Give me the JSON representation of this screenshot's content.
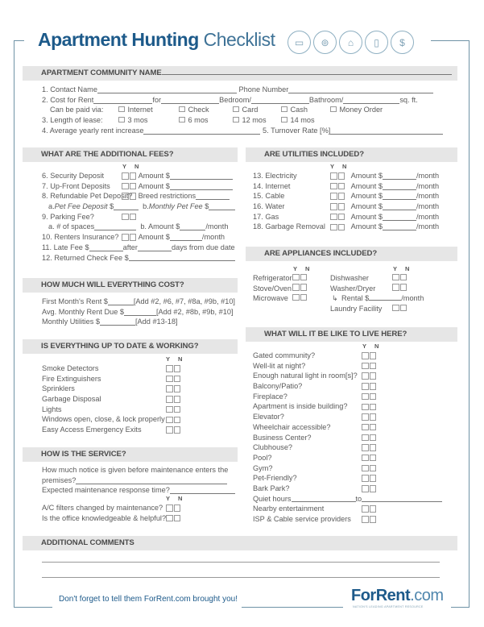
{
  "title": {
    "bold": "Apartment Hunting",
    "light": "Checklist"
  },
  "header_icons": [
    "hotdog-bed-icon",
    "location-pin-icon",
    "hanger-icon",
    "lightbulb-icon",
    "dollar-icon"
  ],
  "colors": {
    "brand_blue": "#1d5a8a",
    "frame": "#6f93a6",
    "section_bar": "#e6e6e6"
  },
  "yn": "Y N",
  "community": {
    "header": "APARTMENT COMMUNITY NAME",
    "contact": "1. Contact Name",
    "phone": "Phone Number",
    "cost": "2. Cost for Rent",
    "for": "for",
    "bedroom": "Bedroom/",
    "bathroom": "Bathroom/",
    "sqft": "sq. ft.",
    "paid_via": "Can be paid via:",
    "pay_options": [
      "Internet",
      "Check",
      "Card",
      "Cash",
      "Money Order"
    ],
    "lease": "3. Length of lease:",
    "lease_options": [
      "3 mos",
      "6 mos",
      "12 mos",
      "14 mos"
    ],
    "increase": "4. Average yearly rent increase",
    "turnover": "5. Turnover Rate [%]"
  },
  "fees": {
    "header": "WHAT ARE THE ADDITIONAL FEES?",
    "security": "6. Security Deposit",
    "upfront": "7. Up-Front Deposits",
    "pet": "8. Refundable Pet Deposit?",
    "amount": "Amount $",
    "breed": "Breed restrictions",
    "pet_a_pre": "a. ",
    "pet_a": "Pet Fee Deposit",
    "dollar": "$",
    "pet_b_pre": "b. ",
    "pet_b": "Monthly Pet Fee",
    "parking": "9. Parking Fee?",
    "spaces": "a. # of spaces",
    "amount_b": "b. Amount $",
    "month": "/month",
    "insurance": "10. Renters Insurance?",
    "late": "11. Late Fee $",
    "after": "after",
    "days": "days from due date",
    "returned": "12. Returned Check Fee $"
  },
  "cost": {
    "header": "HOW MUCH WILL EVERYTHING COST?",
    "rows": [
      {
        "label": "First Month's Rent $",
        "note": "[Add #2, #6, #7, #8a, #9b, #10]"
      },
      {
        "label": "Avg. Monthly Rent Due $",
        "note": "[Add #2, #8b, #9b, #10]"
      },
      {
        "label": "Monthly Utilities $",
        "note": "[Add #13-18]"
      }
    ]
  },
  "utilities": {
    "header": "ARE UTILITIES INCLUDED?",
    "amount": "Amount $",
    "month": "/month",
    "items": [
      "13. Electricity",
      "14. Internet",
      "15. Cable",
      "16. Water",
      "17. Gas",
      "18. Garbage Removal"
    ]
  },
  "appliances": {
    "header": "ARE APPLIANCES INCLUDED?",
    "left": [
      "Refrigerator",
      "Stove/Oven",
      "Microwave"
    ],
    "right": [
      "Dishwasher",
      "Washer/Dryer"
    ],
    "rental": "Rental $",
    "month": "/month",
    "laundry": "Laundry Facility"
  },
  "working": {
    "header": "IS EVERYTHING UP TO DATE & WORKING?",
    "items": [
      "Smoke Detectors",
      "Fire Extinguishers",
      "Sprinklers",
      "Garbage Disposal",
      "Lights",
      "Windows open, close, & lock properly",
      "Easy Access Emergency Exits"
    ]
  },
  "service": {
    "header": "HOW IS THE SERVICE?",
    "notice1": "How much notice is given before maintenance enters the",
    "notice2": "premises?",
    "response": "Expected maintenance response time?",
    "items": [
      "A/C filters changed by maintenance?",
      "Is the office knowledgeable & helpful?"
    ]
  },
  "live": {
    "header": "WHAT WILL IT BE LIKE TO LIVE HERE?",
    "items": [
      "Gated community?",
      "Well-lit at night?",
      "Enough natural light in room[s]?",
      "Balcony/Patio?",
      "Fireplace?",
      "Apartment is inside building?",
      "Elevator?",
      "Wheelchair accessible?",
      "Business Center?",
      "Clubhouse?",
      "Pool?",
      "Gym?",
      "Pet-Friendly?",
      "Bark Park?"
    ],
    "quiet": "Quiet hours",
    "to": "to",
    "after": [
      "Nearby entertainment",
      "ISP & Cable service providers"
    ]
  },
  "comments": {
    "header": "ADDITIONAL COMMENTS"
  },
  "footer": {
    "text": "Don't forget to tell them ForRent.com brought you!",
    "logo": "ForRent.com",
    "tagline": "NATION'S LEADING APARTMENT RESOURCE"
  }
}
